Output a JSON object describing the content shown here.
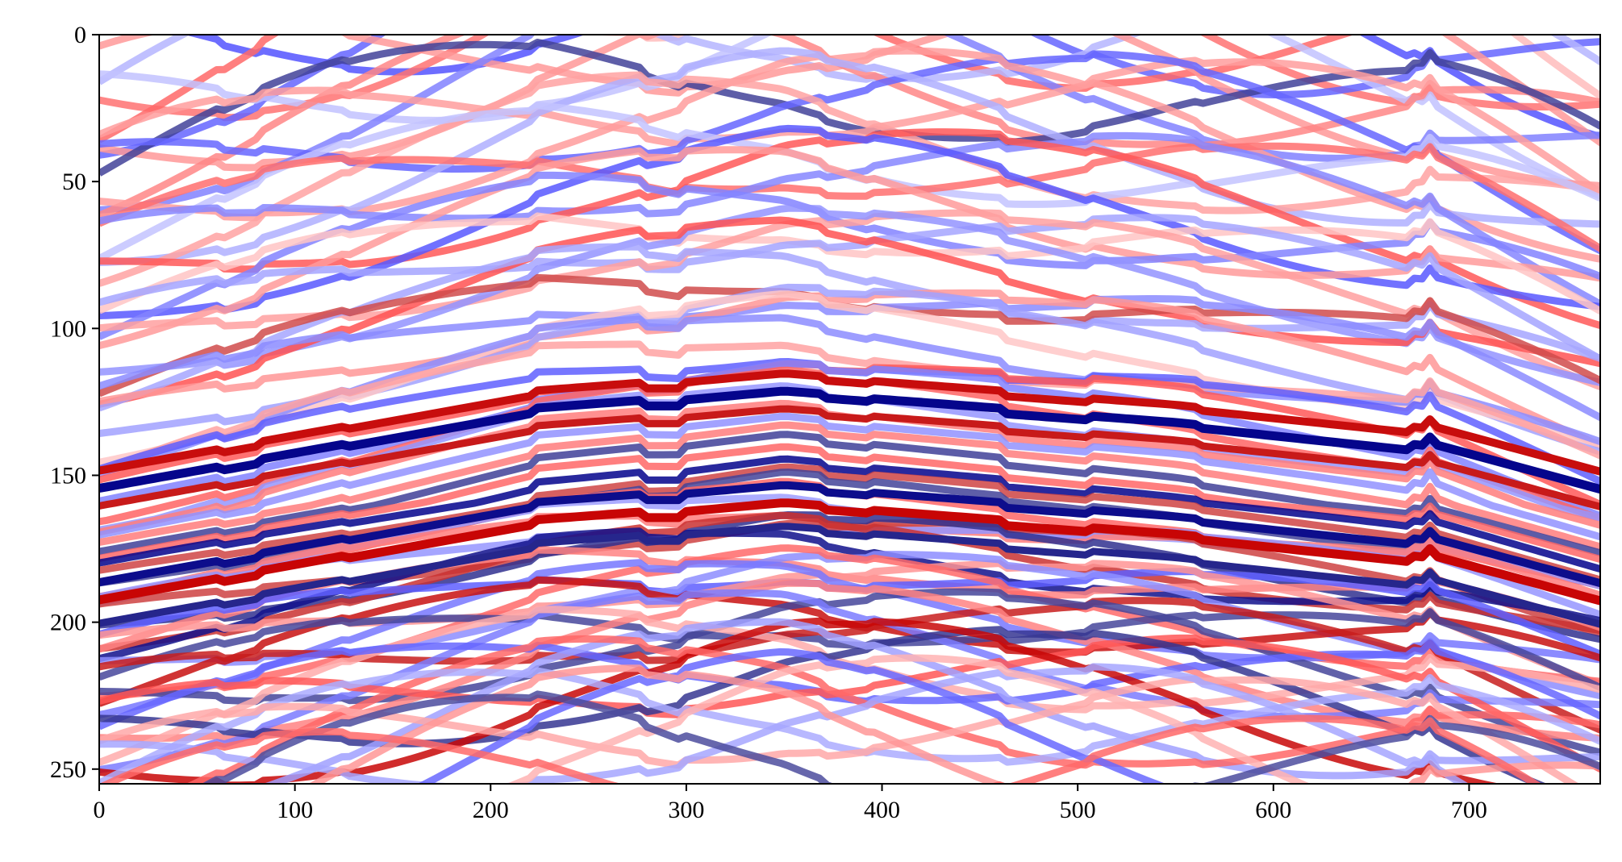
{
  "chart_data": {
    "type": "heatmap",
    "title": "",
    "xlabel": "",
    "ylabel": "",
    "xlim": [
      0,
      767
    ],
    "ylim": [
      255,
      0
    ],
    "x_ticks": [
      "0",
      "100",
      "200",
      "300",
      "400",
      "500",
      "600",
      "700"
    ],
    "y_ticks": [
      "0",
      "50",
      "100",
      "150",
      "200",
      "250"
    ],
    "colormap": "seismic",
    "colors": {
      "negative": "#00008c",
      "zero": "#ffffff",
      "positive": "#c80000"
    },
    "grid": false,
    "legend": "none"
  }
}
